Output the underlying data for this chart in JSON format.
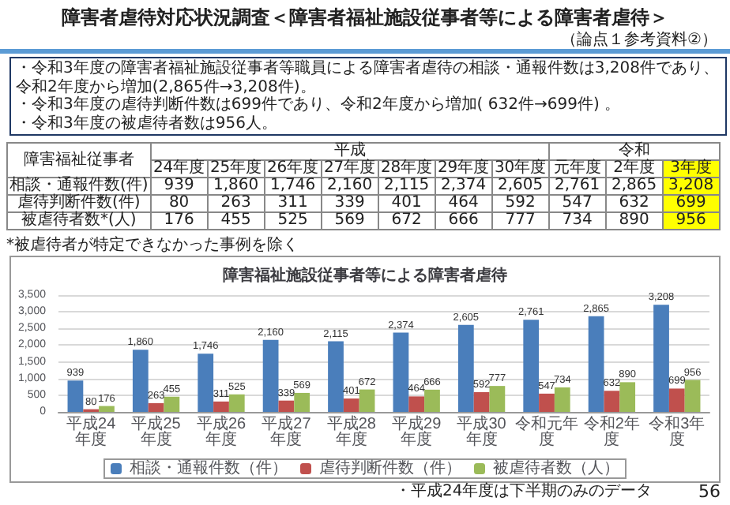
{
  "chart_data": {
    "type": "bar",
    "title": "障害者虐待対応状況調査＜障害者福祉施設従事者等による障害者虐待＞",
    "subtitle": "（論点１参考資料②）",
    "annotations": [
      "・令和3年度の障害者福祉施設従事者等職員による障害者虐待の相談・通報件数は3,208件であり、令和2年度から増加(2,865件→3,208件)。",
      "・令和3年度の虐待判断件数は699件であり、令和2年度から増加( 632件→699件) 。",
      "・令和3年度の被虐待者数は956人。",
      "障害福祉従事者",
      "平成",
      "令和",
      "24年度",
      "25年度",
      "26年度",
      "27年度",
      "28年度",
      "29年度",
      "30年度",
      "元年度",
      "2年度",
      "3年度",
      "相談・通報件数(件)",
      "虐待判断件数(件)",
      "被虐待者数*(人)",
      "*被虐待者が特定できなかった事例を除く",
      "障害福祉施設従事者等による障害者虐待",
      "・平成24年度は下半期のみのデータ",
      "56"
    ],
    "categories": [
      "平成24年度",
      "平成25年度",
      "平成26年度",
      "平成27年度",
      "平成28年度",
      "平成29年度",
      "平成30年度",
      "令和元年度",
      "令和2年度",
      "令和3年度"
    ],
    "series": [
      {
        "name": "相談・通報件数（件）",
        "color": "#4a7ebb",
        "values": [
          939,
          1860,
          1746,
          2160,
          2115,
          2374,
          2605,
          2761,
          2865,
          3208
        ],
        "value_labels": [
          "939",
          "1,860",
          "1,746",
          "2,160",
          "2,115",
          "2,374",
          "2,605",
          "2,761",
          "2,865",
          "3,208"
        ]
      },
      {
        "name": "虐待判断件数（件）",
        "color": "#c0504d",
        "values": [
          80,
          263,
          311,
          339,
          401,
          464,
          592,
          547,
          632,
          699
        ],
        "value_labels": [
          "80",
          "263",
          "311",
          "339",
          "401",
          "464",
          "592",
          "547",
          "632",
          "699"
        ]
      },
      {
        "name": "被虐待者数（人）",
        "color": "#9bbb59",
        "values": [
          176,
          455,
          525,
          569,
          672,
          666,
          777,
          734,
          890,
          956
        ],
        "value_labels": [
          "176",
          "455",
          "525",
          "569",
          "672",
          "666",
          "777",
          "734",
          "890",
          "956"
        ]
      }
    ],
    "ylim": [
      0,
      3500
    ],
    "yticks": [
      0,
      500,
      {
        "value": 1000,
        "label": "1,000"
      },
      {
        "value": 1500,
        "label": "1,500"
      },
      {
        "value": 2000,
        "label": "2,000"
      },
      {
        "value": 2500,
        "label": "2,500"
      },
      {
        "value": 3000,
        "label": "3,000"
      },
      {
        "value": 3500,
        "label": "3,500"
      }
    ],
    "grid": "y",
    "legend": "bottom"
  }
}
